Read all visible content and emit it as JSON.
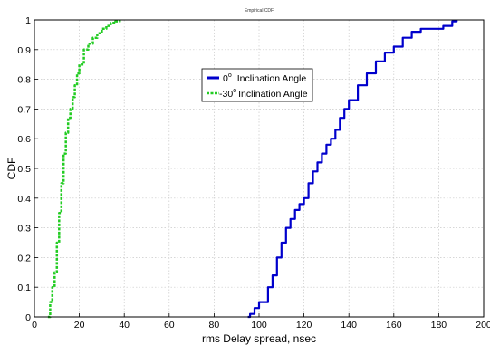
{
  "chart_data": {
    "type": "line",
    "title": "Empirical CDF",
    "xlabel": "rms Delay spread, nsec",
    "ylabel": "CDF",
    "xlim": [
      0,
      200
    ],
    "ylim": [
      0,
      1
    ],
    "x_ticks": [
      "0",
      "20",
      "40",
      "60",
      "80",
      "100",
      "120",
      "140",
      "160",
      "180",
      "200"
    ],
    "y_ticks": [
      "0",
      "0.1",
      "0.2",
      "0.3",
      "0.4",
      "0.5",
      "0.6",
      "0.7",
      "0.8",
      "0.9",
      "1"
    ],
    "grid": true,
    "legend_position": "top-center",
    "series": [
      {
        "name": "0° Inclination Angle",
        "legend_main": "0",
        "legend_sup": "o",
        "legend_rest": "Inclination Angle",
        "color": "#0000cc",
        "style": "solid",
        "points": [
          [
            95,
            0
          ],
          [
            96,
            0.01
          ],
          [
            98,
            0.03
          ],
          [
            100,
            0.05
          ],
          [
            104,
            0.1
          ],
          [
            106,
            0.14
          ],
          [
            108,
            0.2
          ],
          [
            110,
            0.25
          ],
          [
            112,
            0.3
          ],
          [
            114,
            0.33
          ],
          [
            116,
            0.36
          ],
          [
            118,
            0.38
          ],
          [
            120,
            0.4
          ],
          [
            122,
            0.45
          ],
          [
            124,
            0.49
          ],
          [
            126,
            0.52
          ],
          [
            128,
            0.55
          ],
          [
            130,
            0.58
          ],
          [
            132,
            0.6
          ],
          [
            134,
            0.63
          ],
          [
            136,
            0.67
          ],
          [
            138,
            0.7
          ],
          [
            140,
            0.73
          ],
          [
            144,
            0.78
          ],
          [
            148,
            0.82
          ],
          [
            152,
            0.86
          ],
          [
            156,
            0.89
          ],
          [
            160,
            0.91
          ],
          [
            164,
            0.94
          ],
          [
            168,
            0.96
          ],
          [
            172,
            0.97
          ],
          [
            178,
            0.97
          ],
          [
            182,
            0.98
          ],
          [
            186,
            0.995
          ],
          [
            188,
            1.0
          ]
        ]
      },
      {
        "name": "-30° Inclination Angle",
        "legend_main": "-30",
        "legend_sup": "o",
        "legend_rest": "Inclination Angle",
        "color": "#22cc22",
        "style": "dashed",
        "points": [
          [
            6,
            0
          ],
          [
            7,
            0.05
          ],
          [
            8,
            0.1
          ],
          [
            9,
            0.15
          ],
          [
            10,
            0.25
          ],
          [
            11,
            0.35
          ],
          [
            12,
            0.45
          ],
          [
            13,
            0.55
          ],
          [
            14,
            0.62
          ],
          [
            15,
            0.67
          ],
          [
            16,
            0.7
          ],
          [
            17,
            0.74
          ],
          [
            18,
            0.78
          ],
          [
            19,
            0.82
          ],
          [
            20,
            0.85
          ],
          [
            22,
            0.9
          ],
          [
            24,
            0.92
          ],
          [
            26,
            0.94
          ],
          [
            28,
            0.955
          ],
          [
            30,
            0.97
          ],
          [
            32,
            0.98
          ],
          [
            34,
            0.99
          ],
          [
            36,
            0.995
          ],
          [
            38,
            1.0
          ]
        ]
      }
    ]
  }
}
